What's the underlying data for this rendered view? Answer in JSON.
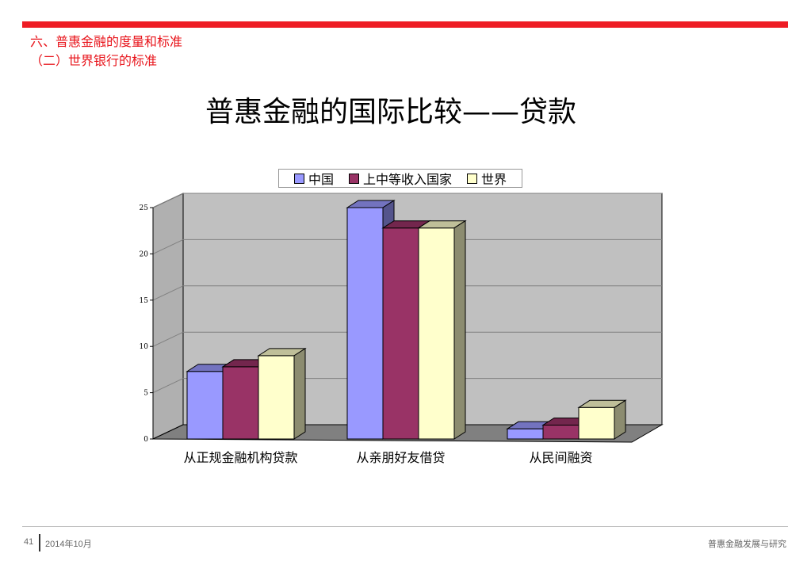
{
  "header": {
    "section_title": "六、普惠金融的度量和标准",
    "subsection_title": "（二）世界银行的标准"
  },
  "slide": {
    "title": "普惠金融的国际比较——贷款"
  },
  "footer": {
    "page_number": "41",
    "date": "2014年10月",
    "right_text": "普惠金融发展与研究"
  },
  "colors": {
    "brand_red": "#ee1c24",
    "series_1": "#9999ff",
    "series_2": "#993366",
    "series_3": "#ffffcc",
    "wall": "#c0c0c0",
    "floor": "#808080"
  },
  "chart_data": {
    "type": "bar",
    "categories": [
      "从正规金融机构贷款",
      "从亲朋好友借贷",
      "从民间融资"
    ],
    "series": [
      {
        "name": "中国",
        "values": [
          7.3,
          25.0,
          1.1
        ]
      },
      {
        "name": "上中等收入国家",
        "values": [
          7.8,
          22.8,
          1.5
        ]
      },
      {
        "name": "世界",
        "values": [
          9.0,
          22.8,
          3.4
        ]
      }
    ],
    "ylim": [
      0,
      25
    ],
    "yticks": [
      "0",
      "5",
      "10",
      "15",
      "20",
      "25"
    ],
    "grid": true,
    "legend": "top",
    "style": "3d-clustered-column"
  }
}
